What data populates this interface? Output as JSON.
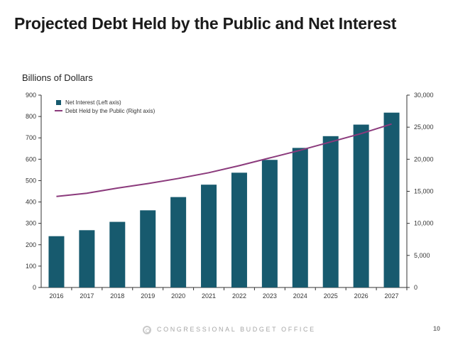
{
  "slide": {
    "title": "Projected Debt Held by the Public and Net Interest",
    "units_label": "Billions of Dollars",
    "footer_org": "CONGRESSIONAL BUDGET OFFICE",
    "page_number": "10"
  },
  "colors": {
    "bar": "#175a6e",
    "line": "#8b3a7c",
    "axis": "#333333"
  },
  "chart_data": {
    "type": "bar",
    "categories": [
      "2016",
      "2017",
      "2018",
      "2019",
      "2020",
      "2021",
      "2022",
      "2023",
      "2024",
      "2025",
      "2026",
      "2027"
    ],
    "series": [
      {
        "name": "Net Interest (Left axis)",
        "type": "bar",
        "axis": "left",
        "values": [
          240,
          268,
          307,
          361,
          423,
          481,
          537,
          597,
          653,
          708,
          762,
          818
        ]
      },
      {
        "name": "Debt Held by the Public (Right axis)",
        "type": "line",
        "axis": "right",
        "values": [
          14200,
          14700,
          15500,
          16200,
          17000,
          17900,
          19000,
          20200,
          21400,
          22700,
          24000,
          25500
        ]
      }
    ],
    "ylim": [
      0,
      900
    ],
    "y_ticks": [
      "0",
      "100",
      "200",
      "300",
      "400",
      "500",
      "600",
      "700",
      "800",
      "900"
    ],
    "y2lim": [
      0,
      30000
    ],
    "y2_ticks": [
      "0",
      "5,000",
      "10,000",
      "15,000",
      "20,000",
      "25,000",
      "30,000"
    ],
    "legend_position": "top-left",
    "grid": false
  }
}
